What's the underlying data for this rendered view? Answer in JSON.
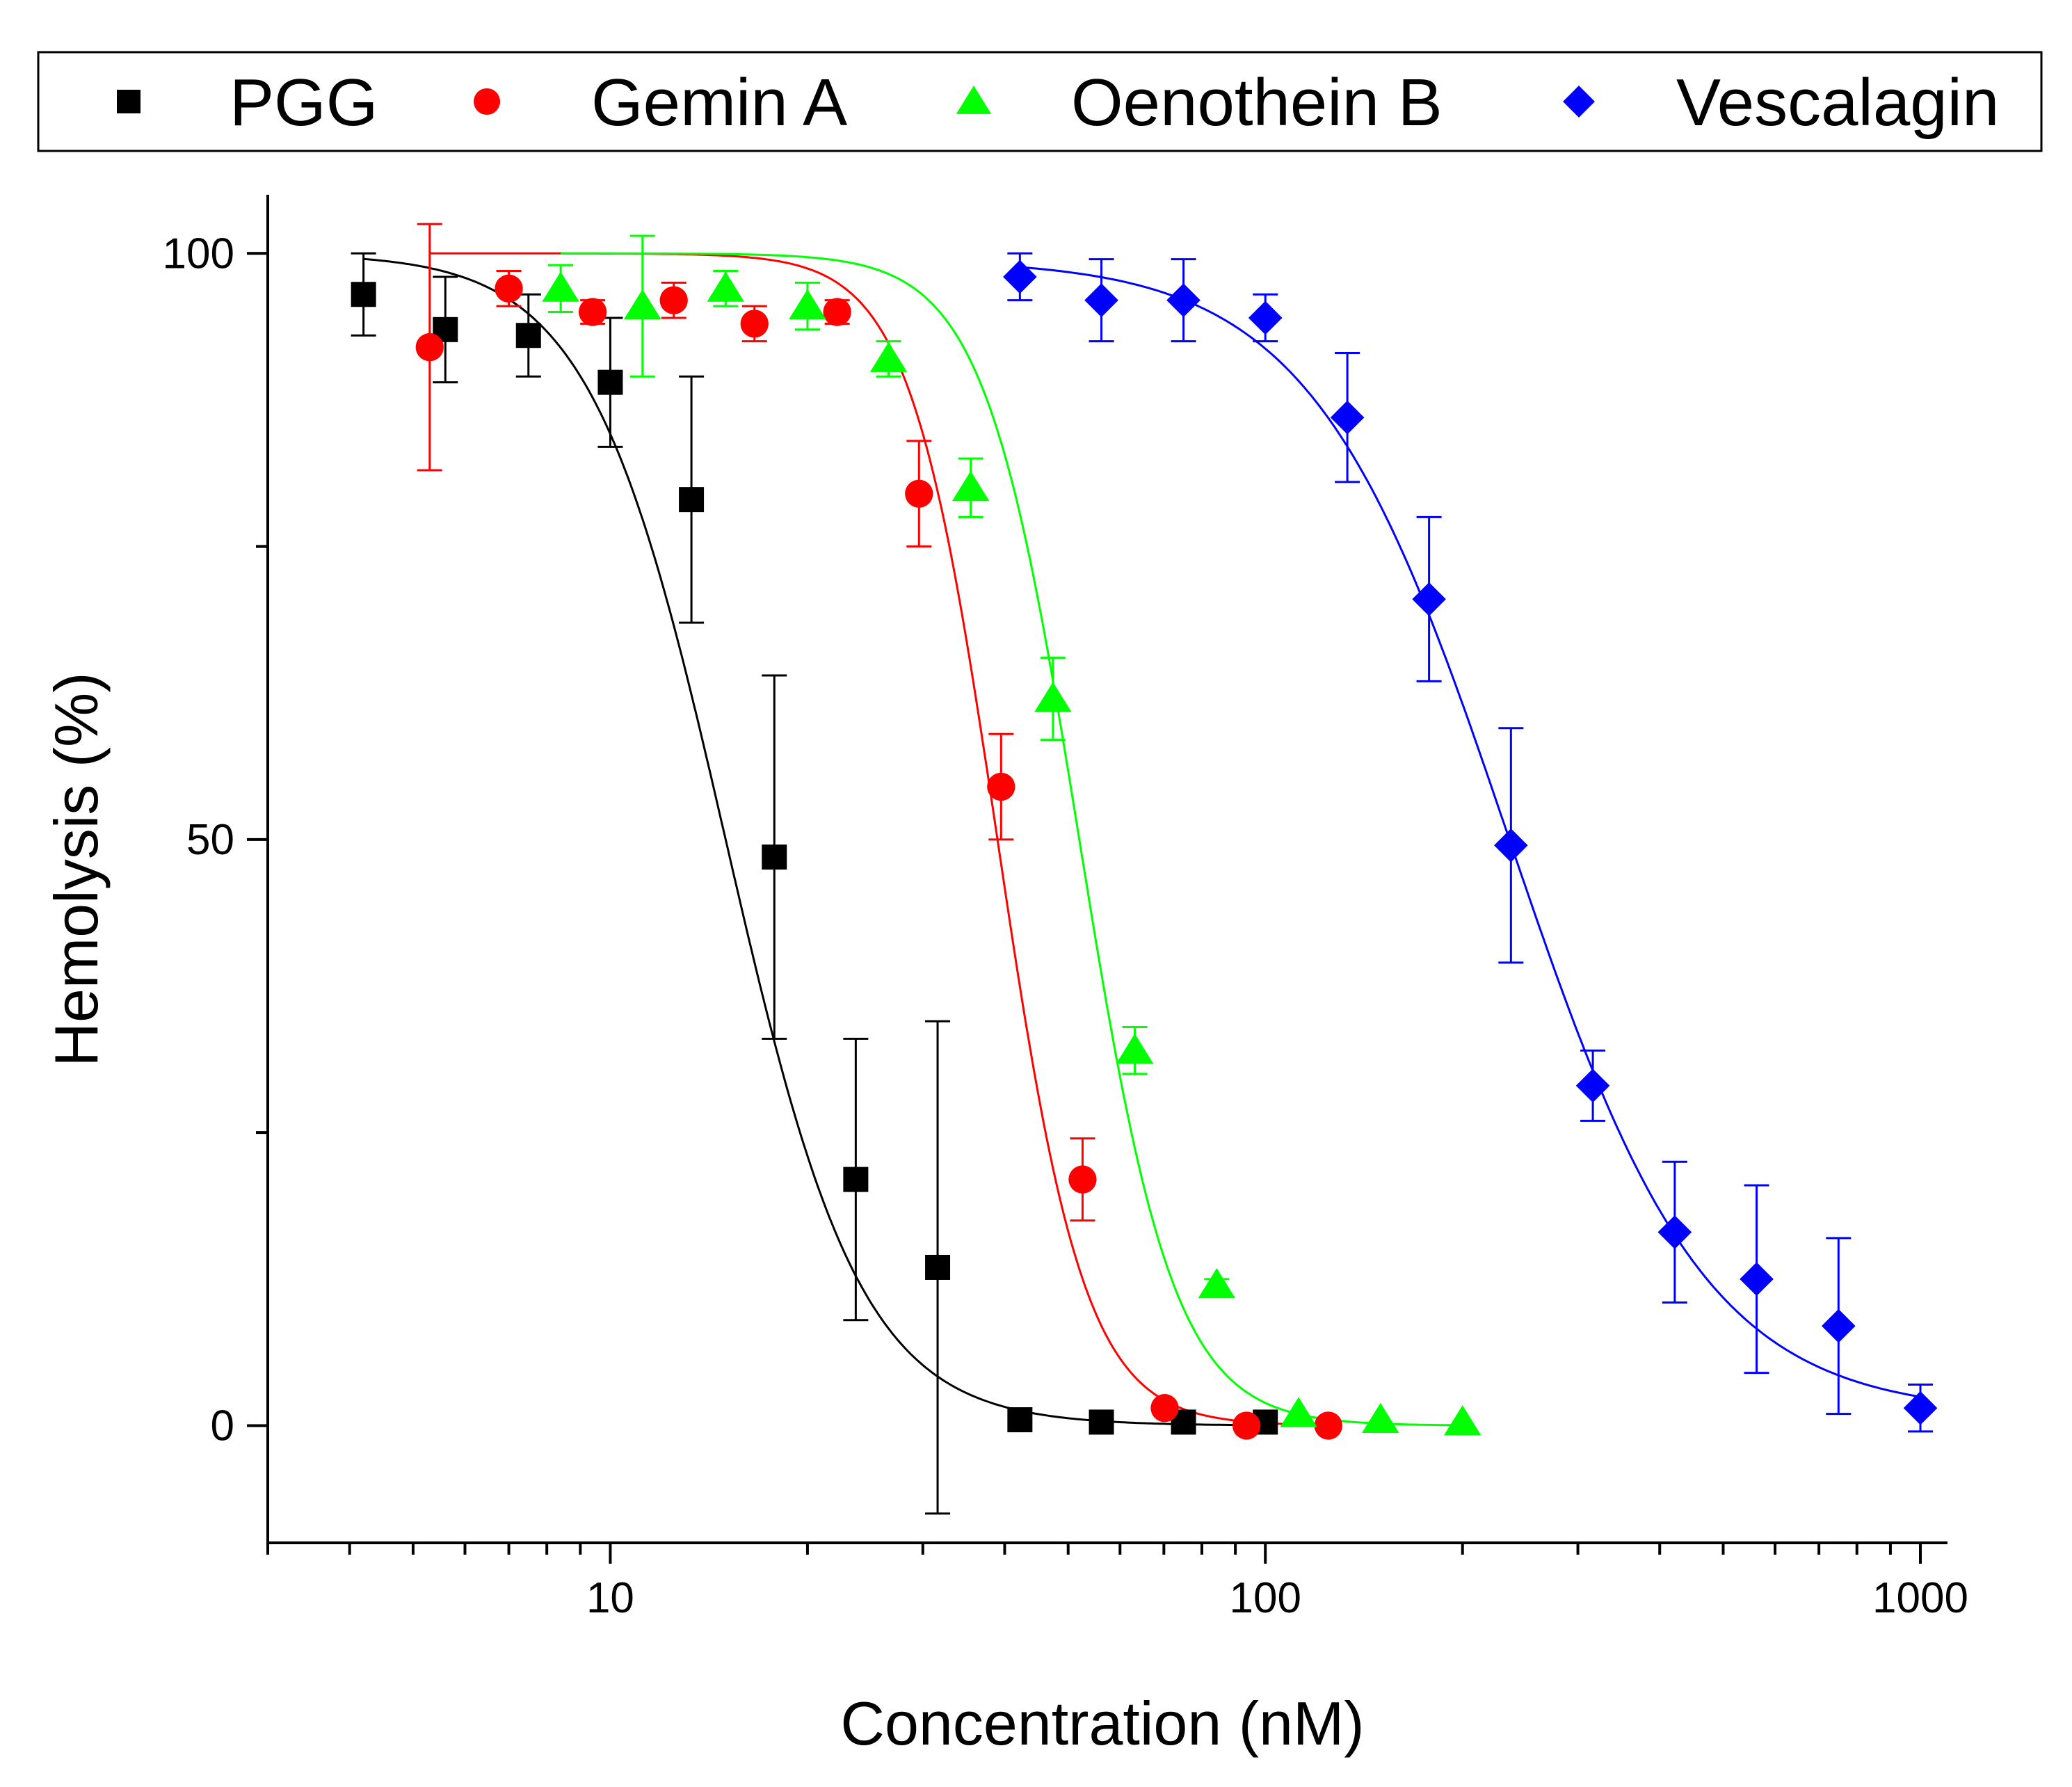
{
  "chart_data": {
    "type": "scatter",
    "title": "",
    "xlabel": "Concentration (nM)",
    "ylabel": "Hemolysis (%)",
    "xscale": "log",
    "xlim": [
      3,
      1100
    ],
    "ylim": [
      -10,
      105
    ],
    "x_ticks": [
      {
        "value": 10,
        "label": "10"
      },
      {
        "value": 100,
        "label": "100"
      },
      {
        "value": 1000,
        "label": "1000"
      }
    ],
    "y_ticks": [
      {
        "value": 0,
        "label": "0"
      },
      {
        "value": 50,
        "label": "50"
      },
      {
        "value": 100,
        "label": "100"
      }
    ],
    "y_minor_ticks": [
      25,
      75
    ],
    "legend_position": "top",
    "fit": "sigmoidal dose-response",
    "series": [
      {
        "name": "PGG",
        "color": "#000000",
        "marker": "square",
        "points": [
          {
            "x": 4.2,
            "y": 96.5,
            "err": 3.5
          },
          {
            "x": 5.6,
            "y": 93.5,
            "err": 4.5
          },
          {
            "x": 7.5,
            "y": 93.0,
            "err": 3.5
          },
          {
            "x": 10.0,
            "y": 89.0,
            "err": 5.5
          },
          {
            "x": 13.3,
            "y": 79.0,
            "err": 10.5
          },
          {
            "x": 17.8,
            "y": 48.5,
            "err": 15.5
          },
          {
            "x": 23.7,
            "y": 21.0,
            "err": 12.0
          },
          {
            "x": 31.6,
            "y": 13.5,
            "err": 21.0
          },
          {
            "x": 42.2,
            "y": 0.5,
            "err": 0.0
          },
          {
            "x": 56.2,
            "y": 0.3,
            "err": 0.0
          },
          {
            "x": 75.0,
            "y": 0.3,
            "err": 0.0
          },
          {
            "x": 100.0,
            "y": 0.3,
            "err": 0.0
          }
        ],
        "fit": {
          "top": 100,
          "bottom": 0,
          "ec50": 15.0,
          "hill": 4.2,
          "xmin": 4.2,
          "xmax": 100
        }
      },
      {
        "name": "Gemin A",
        "color": "#ff0000",
        "marker": "circle",
        "points": [
          {
            "x": 5.3,
            "y": 92.0,
            "err": 10.5
          },
          {
            "x": 7.0,
            "y": 97.0,
            "err": 1.5
          },
          {
            "x": 9.4,
            "y": 95.0,
            "err": 1.0
          },
          {
            "x": 12.5,
            "y": 96.0,
            "err": 1.5
          },
          {
            "x": 16.6,
            "y": 94.0,
            "err": 1.5
          },
          {
            "x": 22.2,
            "y": 95.0,
            "err": 1.0
          },
          {
            "x": 29.6,
            "y": 79.5,
            "err": 4.5
          },
          {
            "x": 39.5,
            "y": 54.5,
            "err": 4.5
          },
          {
            "x": 52.6,
            "y": 21.0,
            "err": 3.5
          },
          {
            "x": 70.2,
            "y": 1.5,
            "err": 0.0
          },
          {
            "x": 93.6,
            "y": 0.0,
            "err": 0.0
          },
          {
            "x": 124.8,
            "y": 0.0,
            "err": 0.0
          }
        ],
        "fit": {
          "top": 100,
          "bottom": 0,
          "ec50": 39.0,
          "hill": 6.5,
          "xmin": 5.3,
          "xmax": 124.8
        }
      },
      {
        "name": "Oenothein B",
        "color": "#00ff00",
        "marker": "triangle",
        "points": [
          {
            "x": 8.4,
            "y": 97.0,
            "err": 2.0
          },
          {
            "x": 11.2,
            "y": 95.5,
            "err": 6.0
          },
          {
            "x": 15.0,
            "y": 97.0,
            "err": 1.5
          },
          {
            "x": 20.0,
            "y": 95.5,
            "err": 2.0
          },
          {
            "x": 26.6,
            "y": 91.0,
            "err": 1.5
          },
          {
            "x": 35.5,
            "y": 80.0,
            "err": 2.5
          },
          {
            "x": 47.4,
            "y": 62.0,
            "err": 3.5
          },
          {
            "x": 63.2,
            "y": 32.0,
            "err": 2.0
          },
          {
            "x": 84.3,
            "y": 12.0,
            "err": 0.5
          },
          {
            "x": 112.4,
            "y": 1.0,
            "err": 0.0
          },
          {
            "x": 149.9,
            "y": 0.5,
            "err": 0.0
          },
          {
            "x": 200.0,
            "y": 0.3,
            "err": 0.0
          }
        ],
        "fit": {
          "top": 100,
          "bottom": 0,
          "ec50": 52.0,
          "hill": 6.0,
          "xmin": 8.4,
          "xmax": 200
        }
      },
      {
        "name": "Vescalagin",
        "color": "#0000ff",
        "marker": "diamond",
        "points": [
          {
            "x": 42.2,
            "y": 98.0,
            "err": 2.0
          },
          {
            "x": 56.2,
            "y": 96.0,
            "err": 3.5
          },
          {
            "x": 75.0,
            "y": 96.0,
            "err": 3.5
          },
          {
            "x": 100.0,
            "y": 94.5,
            "err": 2.0
          },
          {
            "x": 133.4,
            "y": 86.0,
            "err": 5.5
          },
          {
            "x": 177.8,
            "y": 70.5,
            "err": 7.0
          },
          {
            "x": 237.1,
            "y": 49.5,
            "err": 10.0
          },
          {
            "x": 316.2,
            "y": 29.0,
            "err": 3.0
          },
          {
            "x": 421.7,
            "y": 16.5,
            "err": 6.0
          },
          {
            "x": 562.3,
            "y": 12.5,
            "err": 8.0
          },
          {
            "x": 749.9,
            "y": 8.5,
            "err": 7.5
          },
          {
            "x": 1000.0,
            "y": 1.5,
            "err": 2.0
          }
        ],
        "fit": {
          "top": 99.5,
          "bottom": 1.0,
          "ec50": 235.0,
          "hill": 2.9,
          "xmin": 42.2,
          "xmax": 1000
        }
      }
    ]
  }
}
